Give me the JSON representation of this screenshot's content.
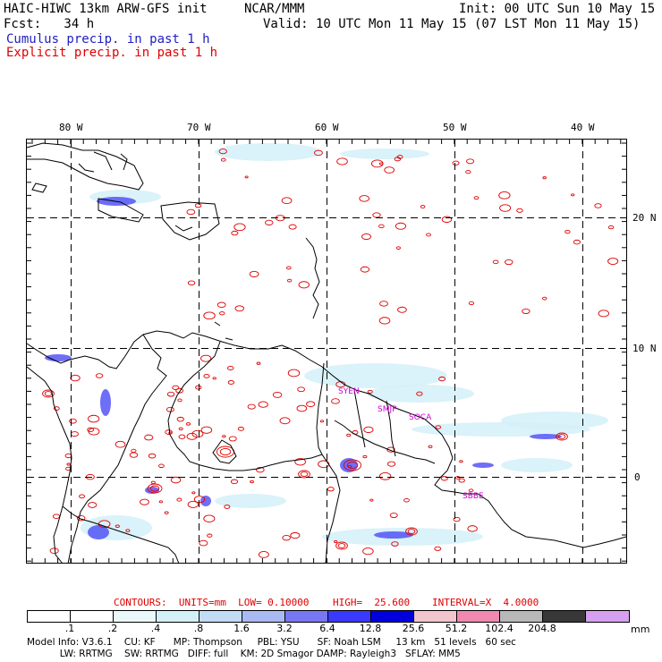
{
  "header": {
    "model_title": "HAIC-HIWC 13km ARW-GFS init",
    "org": "NCAR/MMM",
    "init": "Init: 00 UTC Sun 10 May 15",
    "fcst": "Fcst:   34 h",
    "valid": "Valid: 10 UTC Mon 11 May 15 (07 LST Mon 11 May 15)",
    "legend_cumulus": "Cumulus precip. in past 1 h",
    "legend_explicit": "Explicit precip. in past 1 h",
    "cumulus_color": "#1a1aff",
    "explicit_color": "#e00000"
  },
  "map": {
    "lon_labels": [
      "80 W",
      "70 W",
      "60 W",
      "50 W",
      "40 W"
    ],
    "lat_labels": [
      "20 N",
      "10 N",
      "0"
    ],
    "station_labels": [
      "SYEN",
      "SMJP",
      "SOCA",
      "SBBE"
    ],
    "station_color": "#cc00cc"
  },
  "contours": {
    "units": "CONTOURS:  UNITS=mm  LOW= 0.10000",
    "high": "HIGH=  25.600",
    "interval": "INTERVAL=X  4.0000"
  },
  "colorbar": {
    "unit": "mm",
    "labels": [
      ".1",
      ".2",
      ".4",
      ".8",
      "1.6",
      "3.2",
      "6.4",
      "12.8",
      "25.6",
      "51.2",
      "102.4",
      "204.8"
    ],
    "colors": [
      "#ffffff",
      "#ffffff",
      "#eaf8fc",
      "#d3f0f8",
      "#c2dcf6",
      "#a9b9f2",
      "#7777f4",
      "#3a3aff",
      "#0000dd",
      "#f2c6cc",
      "#f088b0",
      "#b8b8b8",
      "#383838",
      "#d6a0f0"
    ]
  },
  "footer": {
    "line1": "Model Info: V3.6.1    CU: KF      MP: Thompson     PBL: YSU      SF: Noah LSM     13 km   51 levels   60 sec",
    "line2": "           LW: RRTMG    SW: RRTMG   DIFF: full    KM: 2D Smagor DAMP: Rayleigh3   SFLAY: MM5"
  }
}
